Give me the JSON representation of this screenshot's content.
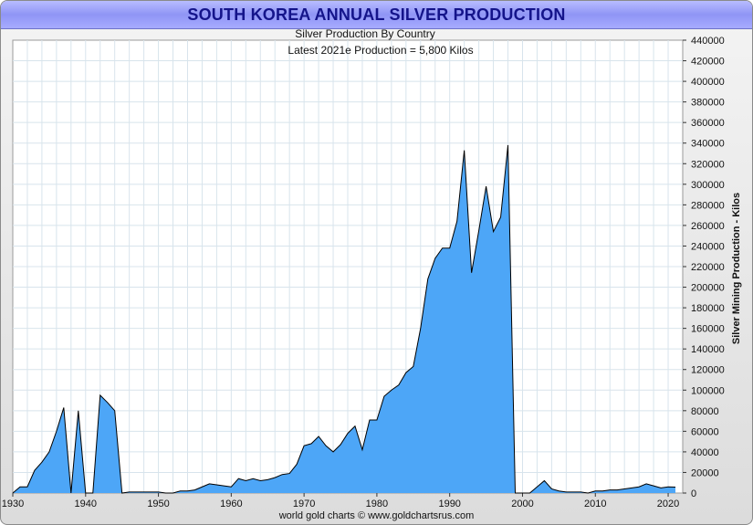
{
  "title": "SOUTH KOREA ANNUAL SILVER PRODUCTION",
  "footer": "world gold charts © www.goldchartsrus.com",
  "colors": {
    "fill": "#4da6f7",
    "stroke": "#000000",
    "title_text": "#14148a",
    "grid": "#d8e4ec"
  },
  "chart_data": {
    "type": "area",
    "title": "Silver Production By Country",
    "subtitle": "Latest 2021e Production = 5,800 Kilos",
    "xlabel": "",
    "ylabel": "Silver Mining Production - Kilos",
    "xlim": [
      1930,
      2022
    ],
    "ylim": [
      0,
      440000
    ],
    "x_ticks": [
      "1930",
      "1940",
      "1950",
      "1960",
      "1970",
      "1980",
      "1990",
      "2000",
      "2010",
      "2020"
    ],
    "y_ticks": [
      "0",
      "20000",
      "40000",
      "60000",
      "80000",
      "100000",
      "120000",
      "140000",
      "160000",
      "180000",
      "200000",
      "220000",
      "240000",
      "260000",
      "280000",
      "300000",
      "320000",
      "340000",
      "360000",
      "380000",
      "400000",
      "420000",
      "440000"
    ],
    "series": [
      {
        "name": "South Korea",
        "x": [
          1930,
          1931,
          1932,
          1933,
          1934,
          1935,
          1936,
          1937,
          1938,
          1939,
          1940,
          1941,
          1942,
          1943,
          1944,
          1945,
          1946,
          1947,
          1948,
          1949,
          1950,
          1951,
          1952,
          1953,
          1954,
          1955,
          1956,
          1957,
          1958,
          1959,
          1960,
          1961,
          1962,
          1963,
          1964,
          1965,
          1966,
          1967,
          1968,
          1969,
          1970,
          1971,
          1972,
          1973,
          1974,
          1975,
          1976,
          1977,
          1978,
          1979,
          1980,
          1981,
          1982,
          1983,
          1984,
          1985,
          1986,
          1987,
          1988,
          1989,
          1990,
          1991,
          1992,
          1993,
          1994,
          1995,
          1996,
          1997,
          1998,
          1999,
          2000,
          2001,
          2002,
          2003,
          2004,
          2005,
          2006,
          2007,
          2008,
          2009,
          2010,
          2011,
          2012,
          2013,
          2014,
          2015,
          2016,
          2017,
          2018,
          2019,
          2020,
          2021
        ],
        "values": [
          0,
          6000,
          6000,
          22000,
          30000,
          40000,
          60000,
          83000,
          0,
          80000,
          0,
          0,
          95000,
          88000,
          80000,
          0,
          1000,
          1000,
          1000,
          1000,
          1000,
          0,
          0,
          2000,
          2000,
          3000,
          6000,
          9000,
          8000,
          7000,
          6000,
          14000,
          12000,
          14000,
          12000,
          13000,
          15000,
          18000,
          19000,
          28000,
          46000,
          48000,
          55000,
          46000,
          40000,
          47000,
          58000,
          65000,
          42000,
          71000,
          71000,
          94000,
          100000,
          105000,
          117000,
          123000,
          160000,
          208000,
          228000,
          238000,
          238000,
          264000,
          333000,
          214000,
          255000,
          298000,
          254000,
          268000,
          338000,
          0,
          0,
          0,
          6000,
          12000,
          4000,
          2000,
          1000,
          1000,
          1000,
          0,
          2000,
          2000,
          3000,
          3000,
          4000,
          5000,
          6000,
          9000,
          7000,
          5000,
          6000,
          5800
        ]
      }
    ]
  }
}
